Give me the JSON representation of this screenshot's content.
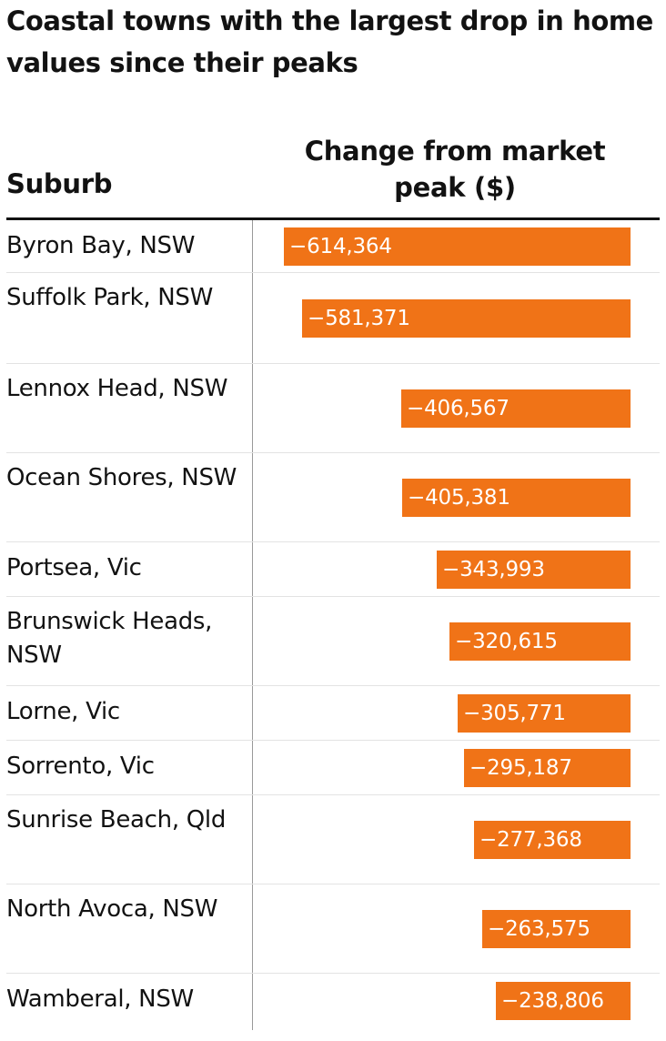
{
  "title": "Coastal towns with the largest drop in home values since their peaks",
  "columns": {
    "suburb": "Suburb",
    "change": "Change from market peak ($)"
  },
  "colors": {
    "bar": "#f07317",
    "bar_text": "#ffffff",
    "rule": "#121212",
    "divider": "#999999",
    "row_separator": "#e3e3e3"
  },
  "chart_data": {
    "type": "bar",
    "orientation": "horizontal",
    "title": "Coastal towns with the largest drop in home values since their peaks",
    "xlabel": "Change from market peak ($)",
    "ylabel": "Suburb",
    "categories": [
      "Byron Bay, NSW",
      "Suffolk Park, NSW",
      "Lennox Head, NSW",
      "Ocean Shores, NSW",
      "Portsea, Vic",
      "Brunswick Heads, NSW",
      "Lorne, Vic",
      "Sorrento, Vic",
      "Sunrise Beach, Qld",
      "North Avoca, NSW",
      "Wamberal, NSW"
    ],
    "values": [
      -614364,
      -581371,
      -406567,
      -405381,
      -343993,
      -320615,
      -305771,
      -295187,
      -277368,
      -263575,
      -238806
    ],
    "value_labels": [
      "−614,364",
      "−581,371",
      "−406,567",
      "−405,381",
      "−343,993",
      "−320,615",
      "−305,771",
      "−295,187",
      "−277,368",
      "−263,575",
      "−238,806"
    ],
    "xlim": [
      -614364,
      0
    ],
    "grid": false,
    "legend": "none"
  }
}
